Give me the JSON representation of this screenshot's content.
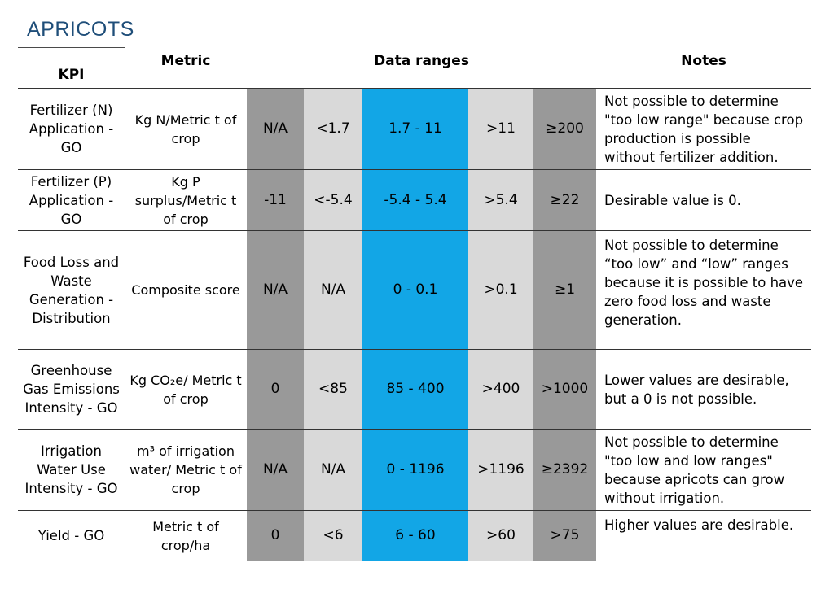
{
  "title": "APRICOTS",
  "headers": {
    "kpi": "KPI",
    "metric": "Metric",
    "data_ranges": "Data ranges",
    "notes": "Notes"
  },
  "rows": [
    {
      "kpi": "Fertilizer (N) Application - GO",
      "metric": "Kg N/Metric t of crop",
      "ranges": [
        "N/A",
        "<1.7",
        "1.7 - 11",
        ">11",
        "≥200"
      ],
      "notes": "Not possible to determine \"too low range\" because crop production is possible without fertilizer addition."
    },
    {
      "kpi": "Fertilizer (P) Application - GO",
      "metric": "Kg P surplus/Metric t of crop",
      "ranges": [
        "-11",
        "<-5.4",
        "-5.4 - 5.4",
        ">5.4",
        "≥22"
      ],
      "notes": "Desirable value is 0."
    },
    {
      "kpi": "Food Loss and Waste Generation - Distribution",
      "metric": "Composite score",
      "ranges": [
        "N/A",
        "N/A",
        "0 - 0.1",
        ">0.1",
        "≥1"
      ],
      "notes": "Not possible to determine “too low” and “low” ranges because it is possible to have zero food loss and waste generation."
    },
    {
      "kpi": "Greenhouse Gas Emissions Intensity - GO",
      "metric": "Kg CO₂e/ Metric t of crop",
      "ranges": [
        "0",
        "<85",
        "85 - 400",
        ">400",
        ">1000"
      ],
      "notes": "Lower values are desirable, but a 0 is not possible."
    },
    {
      "kpi": "Irrigation Water Use Intensity - GO",
      "metric": "m³ of irrigation water/ Metric t of crop",
      "ranges": [
        "N/A",
        "N/A",
        "0 - 1196",
        ">1196",
        "≥2392"
      ],
      "notes": "Not possible to determine \"too low and low ranges\" because apricots can grow without irrigation."
    },
    {
      "kpi": "Yield - GO",
      "metric": "Metric t of crop/ha",
      "ranges": [
        "0",
        "<6",
        "6 - 60",
        ">60",
        ">75"
      ],
      "notes": "Higher values are desirable."
    }
  ],
  "colors": {
    "range_outer": "#999999",
    "range_inner": "#d9d9d9",
    "range_target": "#12a6e6",
    "title": "#1f4e79"
  }
}
